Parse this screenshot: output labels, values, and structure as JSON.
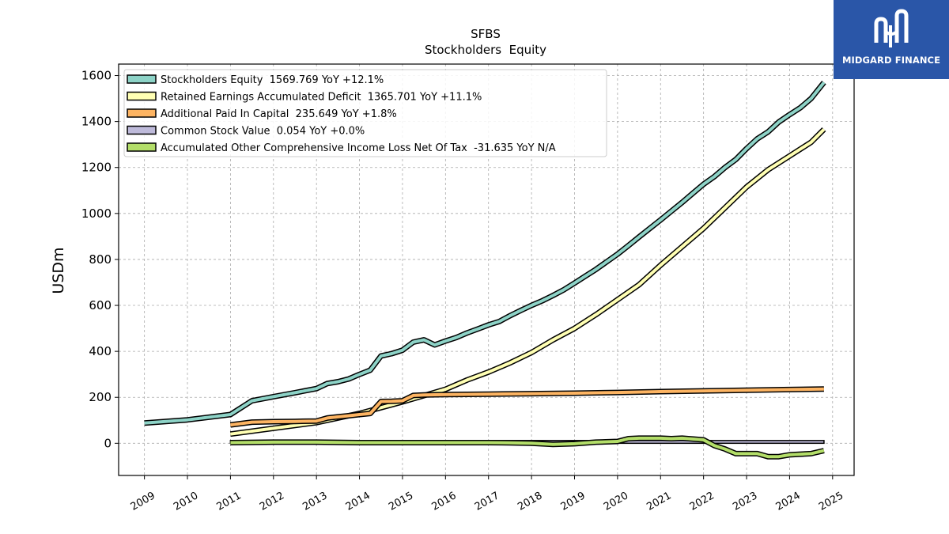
{
  "chart_data": {
    "type": "line",
    "title": "SFBS",
    "subtitle": "Stockholders  Equity",
    "ylabel": "USDm",
    "xlabel": "",
    "xlim": [
      2008.4,
      2025.5
    ],
    "ylim": [
      -140,
      1650
    ],
    "yticks": [
      0,
      200,
      400,
      600,
      800,
      1000,
      1200,
      1400,
      1600
    ],
    "xticks": [
      "2009",
      "2010",
      "2011",
      "2012",
      "2013",
      "2014",
      "2015",
      "2016",
      "2017",
      "2018",
      "2019",
      "2020",
      "2021",
      "2022",
      "2023",
      "2024",
      "2025"
    ],
    "grid": true,
    "legend_position": "top-left",
    "series": [
      {
        "name": "Stockholders Equity",
        "legend": "Stockholders Equity  1569.769 YoY +12.1%",
        "color": "#8dd3c7",
        "x": [
          2009.0,
          2010.0,
          2011.0,
          2011.5,
          2012.0,
          2012.5,
          2013.0,
          2013.25,
          2013.5,
          2013.75,
          2014.0,
          2014.25,
          2014.5,
          2014.75,
          2015.0,
          2015.25,
          2015.5,
          2015.75,
          2016.0,
          2016.25,
          2016.5,
          2016.75,
          2017.0,
          2017.25,
          2017.5,
          2017.75,
          2018.0,
          2018.25,
          2018.5,
          2018.75,
          2019.0,
          2019.25,
          2019.5,
          2019.75,
          2020.0,
          2020.25,
          2020.5,
          2020.75,
          2021.0,
          2021.25,
          2021.5,
          2021.75,
          2022.0,
          2022.25,
          2022.5,
          2022.75,
          2023.0,
          2023.25,
          2023.5,
          2023.75,
          2024.0,
          2024.25,
          2024.5,
          2024.8
        ],
        "y": [
          88,
          102,
          125,
          185,
          203,
          220,
          238,
          260,
          268,
          280,
          300,
          318,
          380,
          390,
          405,
          440,
          450,
          428,
          445,
          460,
          480,
          497,
          515,
          530,
          555,
          578,
          600,
          620,
          643,
          668,
          697,
          727,
          757,
          790,
          823,
          860,
          898,
          935,
          972,
          1010,
          1048,
          1088,
          1127,
          1160,
          1200,
          1235,
          1282,
          1325,
          1355,
          1398,
          1430,
          1460,
          1500,
          1570
        ]
      },
      {
        "name": "Retained Earnings Accumulated Deficit",
        "legend": "Retained Earnings Accumulated Deficit  1365.701 YoY +11.1%",
        "color": "#ffffb3",
        "x": [
          2011.0,
          2012.0,
          2013.0,
          2014.0,
          2015.0,
          2016.0,
          2016.5,
          2017.0,
          2017.5,
          2018.0,
          2018.5,
          2019.0,
          2019.5,
          2020.0,
          2020.5,
          2021.0,
          2021.5,
          2022.0,
          2022.5,
          2023.0,
          2023.5,
          2024.0,
          2024.5,
          2024.8
        ],
        "y": [
          40,
          65,
          90,
          130,
          180,
          235,
          275,
          310,
          350,
          395,
          450,
          500,
          560,
          625,
          690,
          775,
          855,
          935,
          1025,
          1115,
          1190,
          1250,
          1310,
          1366
        ]
      },
      {
        "name": "Additional Paid In Capital",
        "legend": "Additional Paid In Capital  235.649 YoY +1.8%",
        "color": "#fdb462",
        "x": [
          2011.0,
          2011.5,
          2012.0,
          2012.5,
          2013.0,
          2013.25,
          2013.5,
          2013.75,
          2014.0,
          2014.25,
          2014.5,
          2014.75,
          2015.0,
          2015.25,
          2015.5,
          2016.0,
          2016.5,
          2017.0,
          2018.0,
          2019.0,
          2020.0,
          2021.0,
          2022.0,
          2023.0,
          2024.0,
          2024.8
        ],
        "y": [
          80,
          92,
          94,
          95,
          97,
          110,
          115,
          120,
          125,
          130,
          182,
          183,
          185,
          208,
          210,
          212,
          213,
          214,
          216,
          218,
          221,
          225,
          228,
          231,
          234,
          236
        ]
      },
      {
        "name": "Common Stock Value",
        "legend": "Common Stock Value  0.054 YoY +0.0%",
        "color": "#bebada",
        "x": [
          2011.0,
          2024.8
        ],
        "y": [
          0.05,
          0.054
        ]
      },
      {
        "name": "Accumulated Other Comprehensive Income Loss Net Of Tax",
        "legend": "Accumulated Other Comprehensive Income Loss Net Of Tax  -31.635 YoY N/A",
        "color": "#b3de69",
        "x": [
          2011.0,
          2012.0,
          2013.0,
          2014.0,
          2015.0,
          2016.0,
          2017.0,
          2017.5,
          2018.0,
          2018.5,
          2019.0,
          2019.5,
          2020.0,
          2020.25,
          2020.5,
          2021.0,
          2021.25,
          2021.5,
          2022.0,
          2022.25,
          2022.5,
          2022.75,
          2023.0,
          2023.25,
          2023.5,
          2023.75,
          2024.0,
          2024.5,
          2024.8
        ],
        "y": [
          3,
          5,
          5,
          3,
          3,
          3,
          3,
          2,
          0,
          -5,
          -2,
          5,
          8,
          20,
          22,
          22,
          20,
          22,
          15,
          -10,
          -25,
          -45,
          -45,
          -45,
          -58,
          -58,
          -50,
          -45,
          -32
        ]
      }
    ]
  },
  "logo": {
    "text": "MIDGARD FINANCE",
    "color": "#2a56a8"
  }
}
